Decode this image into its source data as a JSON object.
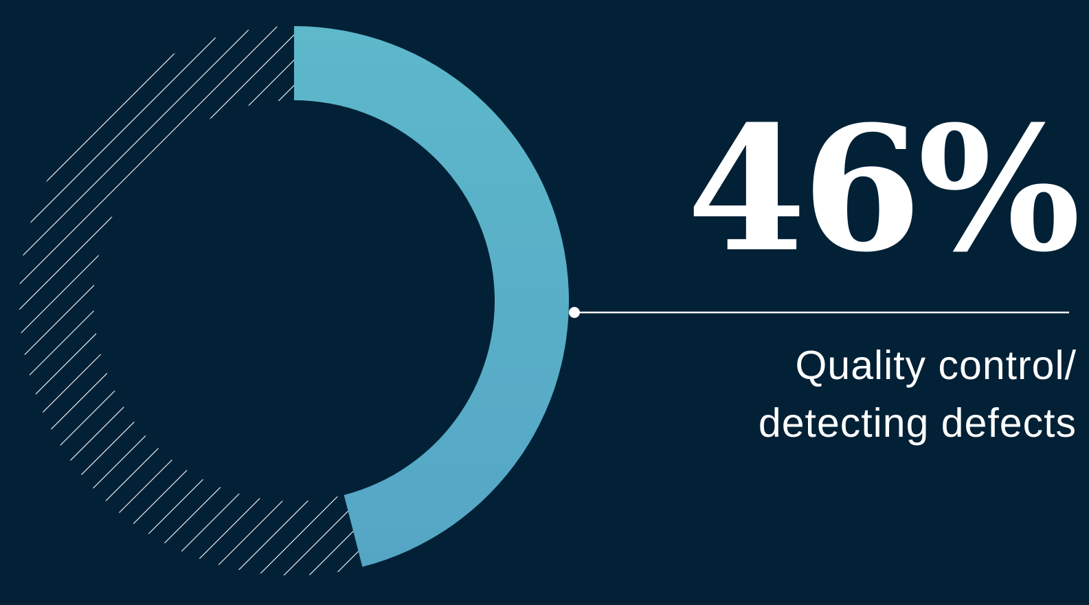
{
  "chart_data": {
    "type": "pie",
    "variant": "donut",
    "categories": [
      "Quality control/ detecting defects"
    ],
    "values": [
      46
    ],
    "value_label": "46%",
    "remainder_style": "diagonal-hatch",
    "colors": {
      "filled": "#5bb3c8",
      "hatch": "#ffffff",
      "background": "#032136"
    }
  },
  "callout": {
    "value": "46%",
    "label_lines": [
      "Quality control/",
      "detecting defects"
    ]
  }
}
